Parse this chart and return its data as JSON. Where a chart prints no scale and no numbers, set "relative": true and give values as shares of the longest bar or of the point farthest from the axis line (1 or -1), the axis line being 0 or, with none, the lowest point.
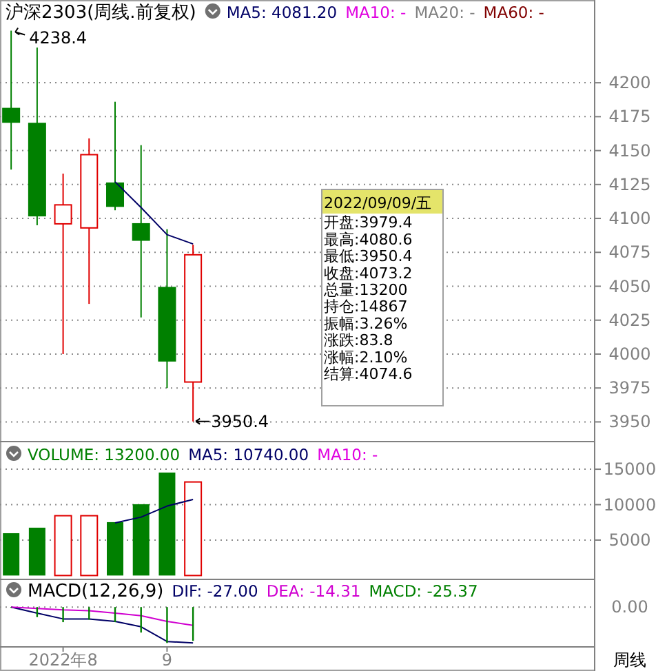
{
  "chart_data": [
    {
      "type": "candlestick",
      "title": "沪深2303(周线.前复权)",
      "x": [
        "2022-07-22",
        "2022-07-29",
        "2022-08-05",
        "2022-08-12",
        "2022-08-19",
        "2022-08-26",
        "2022-09-02",
        "2022-09-09"
      ],
      "xlim": [
        "2022-07-19",
        "2022-12-26"
      ],
      "ohlc": [
        [
          4181,
          4238.4,
          4136,
          4171
        ],
        [
          4170,
          4226,
          4095,
          4102
        ],
        [
          4096,
          4133,
          4000,
          4110
        ],
        [
          4093,
          4159,
          4037,
          4147
        ],
        [
          4126,
          4186,
          4106,
          4109
        ],
        [
          4096,
          4154,
          4027,
          4084
        ],
        [
          4049,
          4092,
          3975,
          3995
        ],
        [
          3979.4,
          4080.6,
          3950.4,
          4073.2
        ]
      ],
      "colors": [
        "#008000",
        "#008000",
        "#e00000",
        "#e00000",
        "#008000",
        "#008000",
        "#008000",
        "#e00000"
      ],
      "series": [
        {
          "name": "MA5: 4081.20",
          "type": "line",
          "color": "#000066",
          "values": [
            null,
            null,
            null,
            null,
            4127,
            4108,
            4088,
            4081.2
          ]
        },
        {
          "name": "MA10: -",
          "type": "line",
          "color": "#e000e0",
          "values": [
            null,
            null,
            null,
            null,
            null,
            null,
            null,
            null
          ]
        },
        {
          "name": "MA20: -",
          "type": "line",
          "color": "#808080",
          "values": [
            null,
            null,
            null,
            null,
            null,
            null,
            null,
            null
          ]
        },
        {
          "name": "MA60: -",
          "type": "line",
          "color": "#800000",
          "values": [
            null,
            null,
            null,
            null,
            null,
            null,
            null,
            null
          ]
        }
      ],
      "ylim": [
        3936,
        4261
      ],
      "yticks": [
        3950,
        3975,
        4000,
        4025,
        4050,
        4075,
        4100,
        4125,
        4150,
        4175,
        4200
      ],
      "grid": "y",
      "tick_labels": "y",
      "legend": "top left",
      "annotations": [
        "4238.4",
        "3950.4",
        "2022/09/09/五",
        "开盘:3979.4",
        "最高:4080.6",
        "最低:3950.4",
        "收盘:4073.2",
        "总量:13200",
        "持仓:14867",
        "振幅:3.26%",
        "涨跌:83.8",
        "涨幅:2.10%",
        "结算:4074.6"
      ]
    },
    {
      "type": "bar",
      "x": [
        "2022-07-22",
        "2022-07-29",
        "2022-08-05",
        "2022-08-12",
        "2022-08-19",
        "2022-08-26",
        "2022-09-02",
        "2022-09-09"
      ],
      "xlim": [
        "2022-07-19",
        "2022-12-26"
      ],
      "series": [
        {
          "name": "VOLUME: 13200.00",
          "type": "bar",
          "colors": [
            "#008000",
            "#008000",
            "#e00000",
            "#e00000",
            "#008000",
            "#008000",
            "#008000",
            "#e00000"
          ],
          "values": [
            5970,
            6750,
            8440,
            8440,
            7530,
            10060,
            14530,
            13200
          ]
        },
        {
          "name": "MA5: 10740.00",
          "type": "line",
          "color": "#000066",
          "values": [
            null,
            null,
            null,
            null,
            7430,
            8240,
            9800,
            10740
          ]
        },
        {
          "name": "MA10: -",
          "type": "line",
          "color": "#e000e0",
          "values": [
            null,
            null,
            null,
            null,
            null,
            null,
            null,
            null
          ]
        }
      ],
      "ylim": [
        0,
        18800
      ],
      "yticks": [
        5000,
        10000,
        15000
      ],
      "grid": "y",
      "tick_labels": "y",
      "legend": "top left"
    },
    {
      "type": "bar",
      "title": "MACD(12,26,9)",
      "x": [
        "2022-07-22",
        "2022-07-29",
        "2022-08-05",
        "2022-08-12",
        "2022-08-19",
        "2022-08-26",
        "2022-09-02",
        "2022-09-09"
      ],
      "xlim": [
        "2022-07-19",
        "2022-12-26"
      ],
      "xticks": [
        {
          "value": "2022-08-05",
          "label": "2022年8"
        },
        {
          "value": "2022-09-02",
          "label": "9"
        }
      ],
      "relative": true,
      "series": [
        {
          "name": "DIF: -27.00",
          "type": "line",
          "color": "#000066",
          "values": [
            0,
            -0.17,
            -0.33,
            -0.33,
            -0.4,
            -0.55,
            -0.96,
            -1
          ]
        },
        {
          "name": "DEA: -14.31",
          "type": "line",
          "color": "#d000d0",
          "values": [
            0,
            -0.04,
            -0.08,
            -0.1,
            -0.17,
            -0.24,
            -0.4,
            -0.51
          ]
        },
        {
          "name": "MACD: -25.37",
          "type": "bar",
          "color": "#008000",
          "values": [
            0,
            -0.28,
            -0.42,
            -0.35,
            -0.42,
            -0.71,
            -1,
            -0.94
          ]
        }
      ],
      "ref_lines": [
        {
          "axis": "y",
          "value": 0,
          "label": "0.00",
          "line_style": "dotted"
        }
      ],
      "tick_labels": "x",
      "legend": "top",
      "annotations": [
        "周线"
      ]
    }
  ]
}
